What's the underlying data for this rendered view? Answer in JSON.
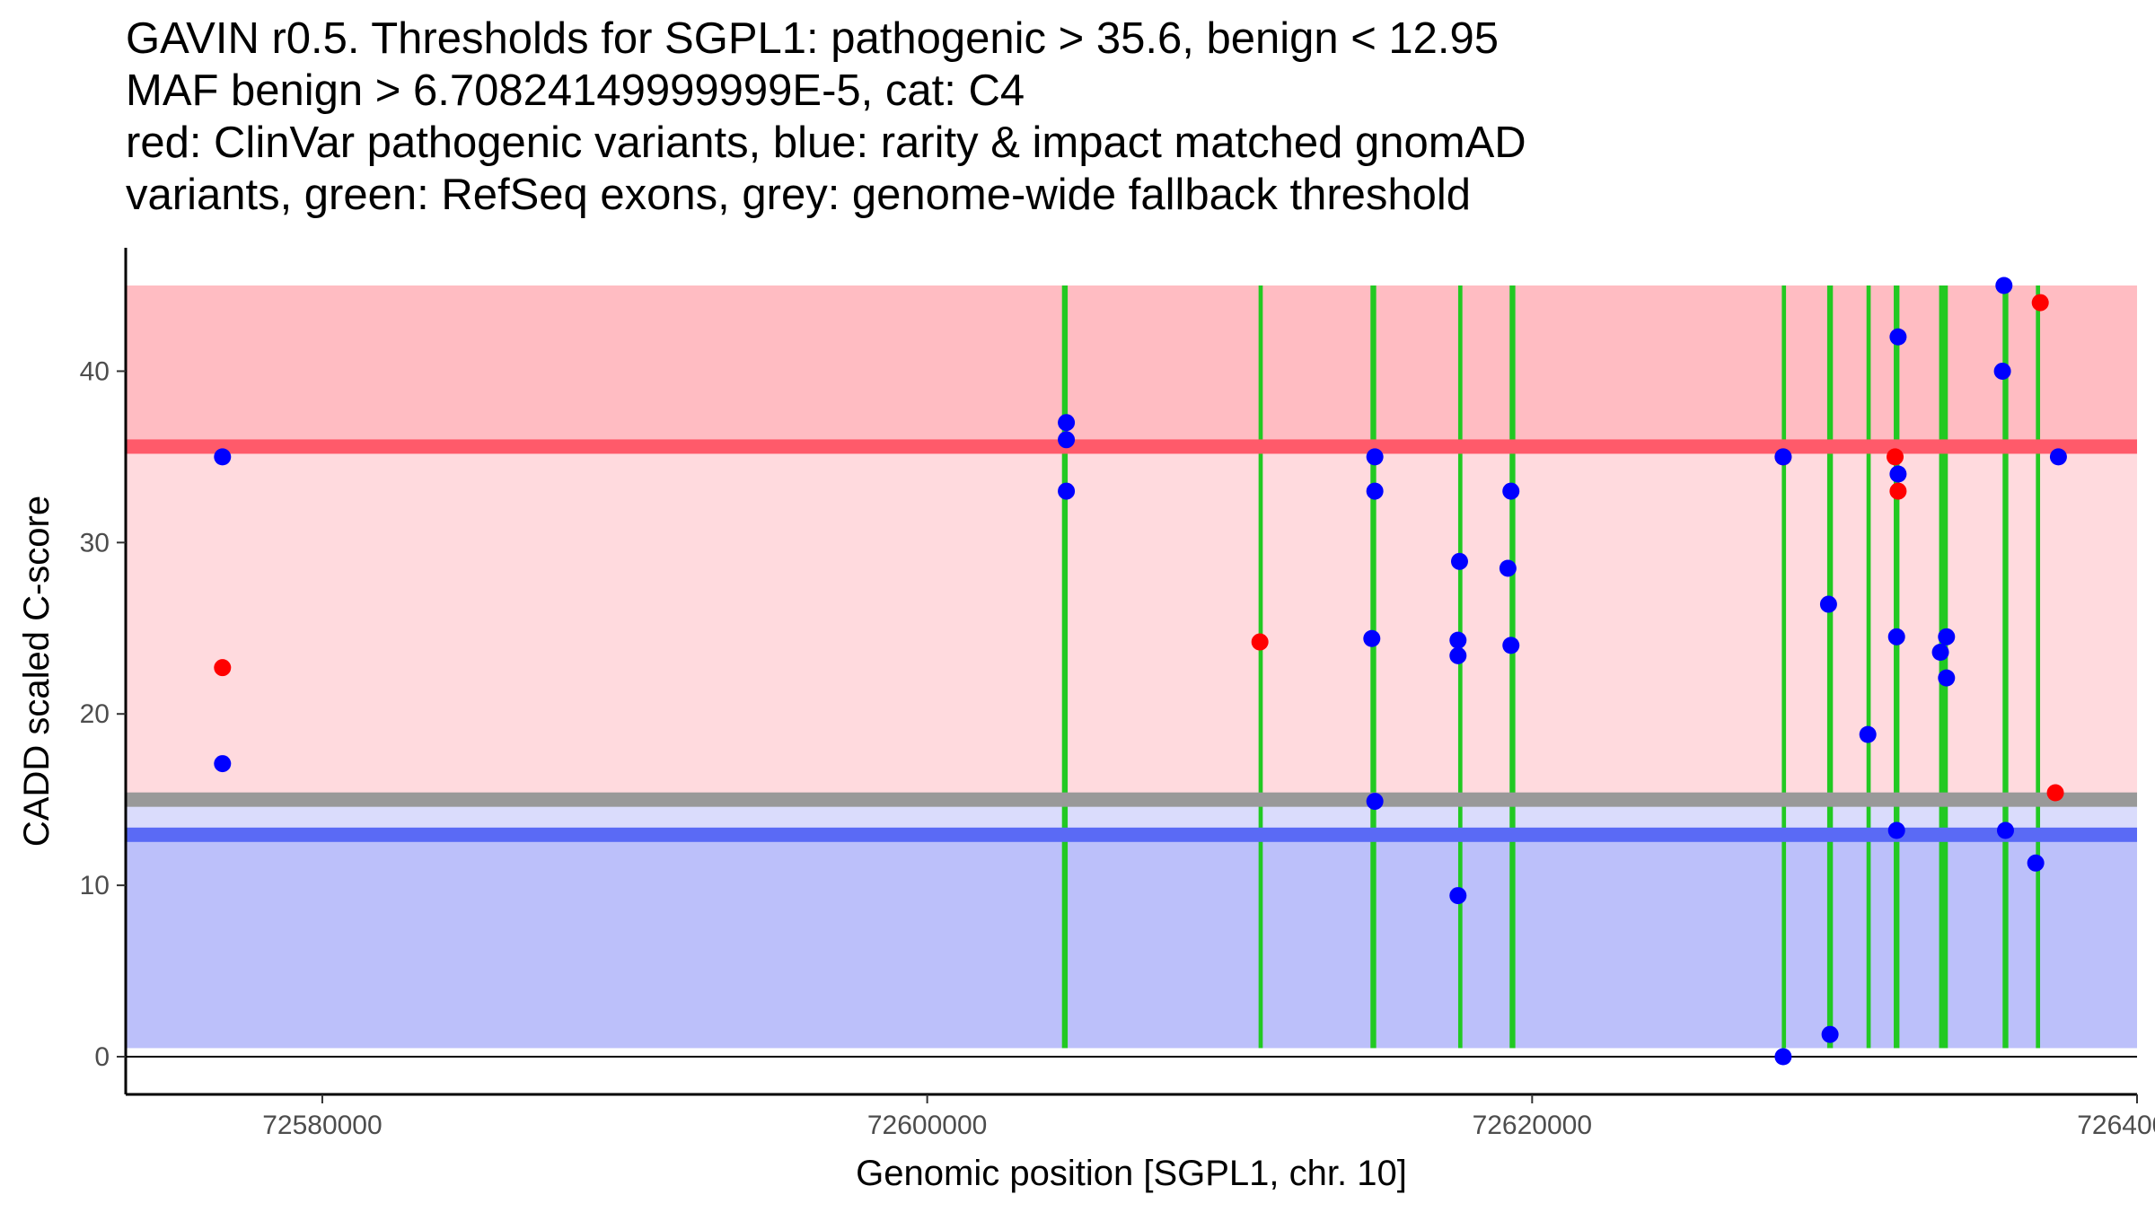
{
  "chart_data": {
    "type": "scatter",
    "title_lines": [
      "GAVIN r0.5. Thresholds for SGPL1: pathogenic > 35.6, benign < 12.95",
      "MAF benign > 6.70824149999999E-5, cat: C4",
      "red: ClinVar pathogenic variants, blue: rarity & impact matched gnomAD",
      "variants, green: RefSeq exons, grey: genome-wide fallback threshold"
    ],
    "xlabel": "Genomic position [SGPL1, chr. 10]",
    "ylabel": "CADD scaled C-score",
    "xlim": [
      72573500,
      72640000
    ],
    "ylim": [
      -2.2,
      47.2
    ],
    "x_ticks": [
      72580000,
      72600000,
      72620000,
      72640000
    ],
    "x_tick_labels": [
      "72580000",
      "72600000",
      "72620000",
      "72640000"
    ],
    "y_ticks": [
      0,
      10,
      20,
      30,
      40
    ],
    "y_tick_labels": [
      "0",
      "10",
      "20",
      "30",
      "40"
    ],
    "thresholds": {
      "pathogenic": 35.6,
      "benign": 12.95,
      "fallback": 15.0,
      "band_max": 45.0,
      "band_min": 0.5
    },
    "colors": {
      "pathogenic_zone": "#ffbcc2",
      "middle_zone": "#ffdade",
      "benign_zone": "#bcc0fa",
      "gap_zone": "#dadcfc",
      "pathogenic_line": "#ff5a6a",
      "benign_line": "#5a6af5",
      "fallback_line": "#999999",
      "exon": "#22c922",
      "clinvar": "#ff0000",
      "gnomad": "#0000ff",
      "axis": "#000000"
    },
    "exons": [
      [
        72604500,
        72604600
      ],
      [
        72611000,
        72611050
      ],
      [
        72614700,
        72614800
      ],
      [
        72617600,
        72617650
      ],
      [
        72619300,
        72619400
      ],
      [
        72628300,
        72628350
      ],
      [
        72629800,
        72629900
      ],
      [
        72631100,
        72631150
      ],
      [
        72632000,
        72632100
      ],
      [
        72633500,
        72633700
      ],
      [
        72635600,
        72635700
      ],
      [
        72636700,
        72636750
      ]
    ],
    "series": [
      {
        "name": "ClinVar pathogenic",
        "color": "#ff0000",
        "points": [
          [
            72576700,
            22.7
          ],
          [
            72611000,
            24.2
          ],
          [
            72628300,
            35.0
          ],
          [
            72632000,
            35.0
          ],
          [
            72632100,
            33.0
          ],
          [
            72636800,
            44.0
          ],
          [
            72637300,
            15.4
          ]
        ]
      },
      {
        "name": "gnomAD matched",
        "color": "#0000ff",
        "points": [
          [
            72576700,
            35.0
          ],
          [
            72576700,
            17.1
          ],
          [
            72604600,
            37.0
          ],
          [
            72604600,
            36.0
          ],
          [
            72604600,
            33.0
          ],
          [
            72614800,
            35.0
          ],
          [
            72614800,
            33.0
          ],
          [
            72614700,
            24.4
          ],
          [
            72614800,
            14.9
          ],
          [
            72617600,
            28.9
          ],
          [
            72617550,
            24.3
          ],
          [
            72617550,
            23.4
          ],
          [
            72617550,
            9.4
          ],
          [
            72619300,
            33.0
          ],
          [
            72619200,
            28.5
          ],
          [
            72619300,
            24.0
          ],
          [
            72628300,
            35.0
          ],
          [
            72628300,
            0.0
          ],
          [
            72629800,
            26.4
          ],
          [
            72629850,
            1.3
          ],
          [
            72631100,
            18.8
          ],
          [
            72632100,
            42.0
          ],
          [
            72632100,
            34.0
          ],
          [
            72632050,
            24.5
          ],
          [
            72632050,
            13.2
          ],
          [
            72633700,
            24.5
          ],
          [
            72633500,
            23.6
          ],
          [
            72633700,
            22.1
          ],
          [
            72635600,
            45.0
          ],
          [
            72635550,
            40.0
          ],
          [
            72635650,
            13.2
          ],
          [
            72636650,
            11.3
          ],
          [
            72637400,
            35.0
          ]
        ]
      }
    ]
  }
}
